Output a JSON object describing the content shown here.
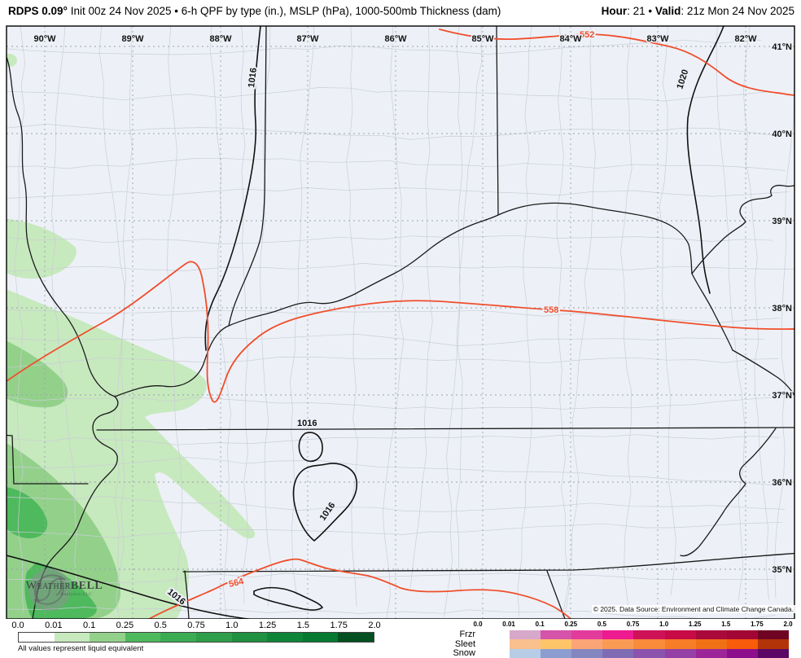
{
  "header": {
    "title_bold": "RDPS 0.09°",
    "title_rest": " Init 00z 24 Nov 2025 • 6-h QPF by type (in.), MSLP (hPa), 1000-500mb Thickness (dam)",
    "hour_label": "Hour",
    "hour_value": ": 21",
    "separator": " • ",
    "valid_label": "Valid",
    "valid_value": ": 21z Mon 24 Nov 2025"
  },
  "map": {
    "lon_labels": [
      "90°W",
      "89°W",
      "88°W",
      "87°W",
      "86°W",
      "85°W",
      "84°W",
      "83°W",
      "82°W"
    ],
    "lat_labels": [
      "41°N",
      "40°N",
      "39°N",
      "38°N",
      "37°N",
      "36°N",
      "35°N"
    ],
    "contour_labels": [
      "552",
      "558",
      "564",
      "1016",
      "1016",
      "1016",
      "1016",
      "1020"
    ],
    "colors": {
      "background": "#edf1f7",
      "county": "#c9cdd6",
      "graticule": "#9aa0ab",
      "state_border": "#1a1a1a",
      "isobar": "#111111",
      "thickness": "#f04e2c",
      "precip_light": "#c7e9be",
      "precip_medium": "#93d18a",
      "precip_dark": "#4fb95d"
    }
  },
  "legend_green": {
    "ticks": [
      "0.0",
      "0.01",
      "0.1",
      "0.25",
      "0.5",
      "0.75",
      "1.0",
      "1.25",
      "1.5",
      "1.75",
      "2.0"
    ],
    "colors": [
      "#ffffff",
      "#c7e9be",
      "#93d18a",
      "#4fb95d",
      "#3cac53",
      "#2e9e4a",
      "#1f9141",
      "#0f8539",
      "#057a30",
      "#035020"
    ],
    "note": "All values represent liquid equivalent"
  },
  "legend_type": {
    "ticks": [
      "0.0",
      "0.01",
      "0.1",
      "0.25",
      "0.5",
      "0.75",
      "1.0",
      "1.25",
      "1.5",
      "1.75",
      "2.0"
    ],
    "rows": [
      {
        "label": "Frzr",
        "colors": [
          "#d7a8ca",
          "#d553a9",
          "#e33b9c",
          "#ee1a8f",
          "#ce1257",
          "#c60b46",
          "#aa093c",
          "#a20634",
          "#6e0422"
        ]
      },
      {
        "label": "Sleet",
        "colors": [
          "#fac08e",
          "#fec468",
          "#fba477",
          "#fa9b55",
          "#f98b3b",
          "#f77d26",
          "#f07115",
          "#f85b09",
          "#b23307"
        ]
      },
      {
        "label": "Snow",
        "colors": [
          "#b7cde6",
          "#8c9dd0",
          "#8487bf",
          "#7f6cb5",
          "#8b53ae",
          "#9440a6",
          "#9c2699",
          "#8c0e8c",
          "#5a0766"
        ]
      }
    ]
  },
  "footer": {
    "copyright": "© 2025. Data Source: Environment and Climate Change Canada."
  },
  "logo": {
    "main_a": "Weather",
    "main_b": "BELL",
    "sub": "Analytics LLC"
  }
}
